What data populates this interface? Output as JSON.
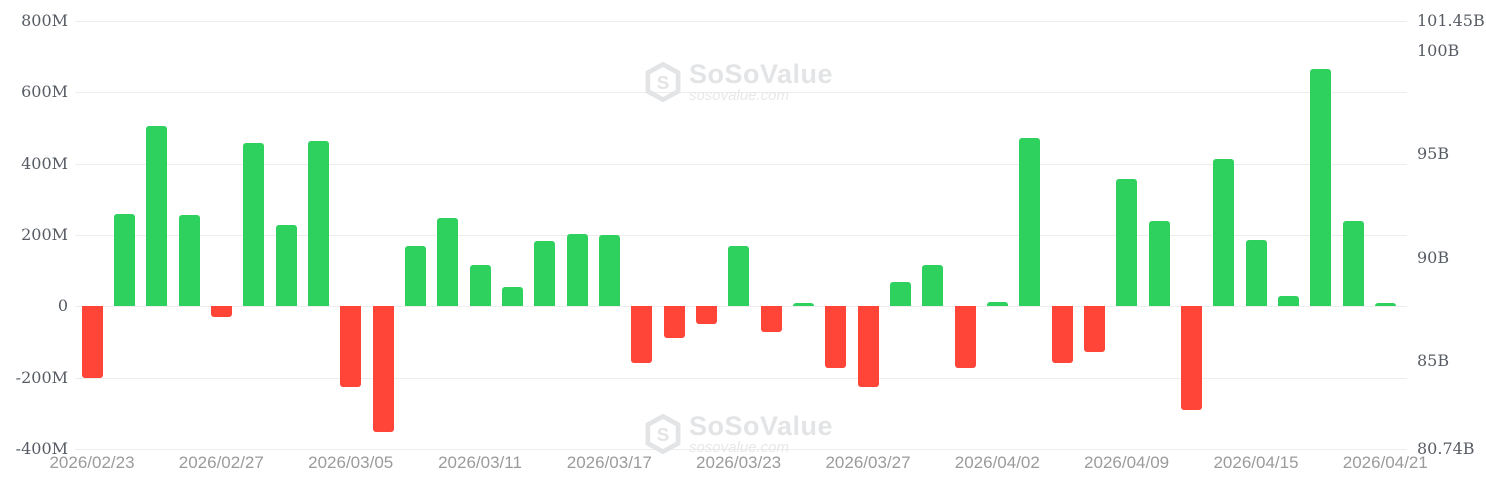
{
  "watermark": {
    "brand": "SoSoValue",
    "domain": "sosovalue.com"
  },
  "chart_data": {
    "type": "bar",
    "title": "",
    "description": "Daily net fund flow bars (left axis, millions) with secondary cumulative axis (right, billions)",
    "values_millions": [
      -200,
      258,
      507,
      255,
      -30,
      459,
      227,
      465,
      -227,
      -353,
      168,
      249,
      115,
      53,
      182,
      204,
      199,
      -160,
      -90,
      -50,
      168,
      -73,
      10,
      -174,
      -227,
      67,
      115,
      -174,
      12,
      473,
      -160,
      -128,
      358,
      240,
      -291,
      414,
      187,
      28,
      665,
      240,
      10
    ],
    "x_ticks": {
      "indices": [
        0,
        4,
        8,
        12,
        16,
        20,
        24,
        28,
        32,
        36,
        40
      ],
      "labels": [
        "2026/02/23",
        "2026/02/27",
        "2026/03/05",
        "2026/03/11",
        "2026/03/17",
        "2026/03/23",
        "2026/03/27",
        "2026/04/02",
        "2026/04/09",
        "2026/04/15",
        "2026/04/21"
      ]
    },
    "left_axis": {
      "ylim": [
        -400,
        800
      ],
      "unit": "M",
      "ticks": [
        {
          "value": 800,
          "label": "800M"
        },
        {
          "value": 600,
          "label": "600M"
        },
        {
          "value": 400,
          "label": "400M"
        },
        {
          "value": 200,
          "label": "200M"
        },
        {
          "value": 0,
          "label": "0"
        },
        {
          "value": -200,
          "label": "-200M"
        },
        {
          "value": -400,
          "label": "-400M"
        }
      ]
    },
    "right_axis": {
      "ylim": [
        80.74,
        101.45
      ],
      "unit": "B",
      "ticks": [
        {
          "value": 101.45,
          "label": "101.45B"
        },
        {
          "value": 100,
          "label": "100B"
        },
        {
          "value": 95,
          "label": "95B"
        },
        {
          "value": 90,
          "label": "90B"
        },
        {
          "value": 85,
          "label": "85B"
        },
        {
          "value": 80.74,
          "label": "80.74B"
        }
      ]
    },
    "grid": true,
    "legend": "none",
    "colors": {
      "positive": "#2ed05e",
      "negative": "#ff4438",
      "gridline": "#ededed",
      "axis_label": "#575c64",
      "date_label": "#9b9b9b",
      "watermark": "#e3e4e6"
    }
  }
}
